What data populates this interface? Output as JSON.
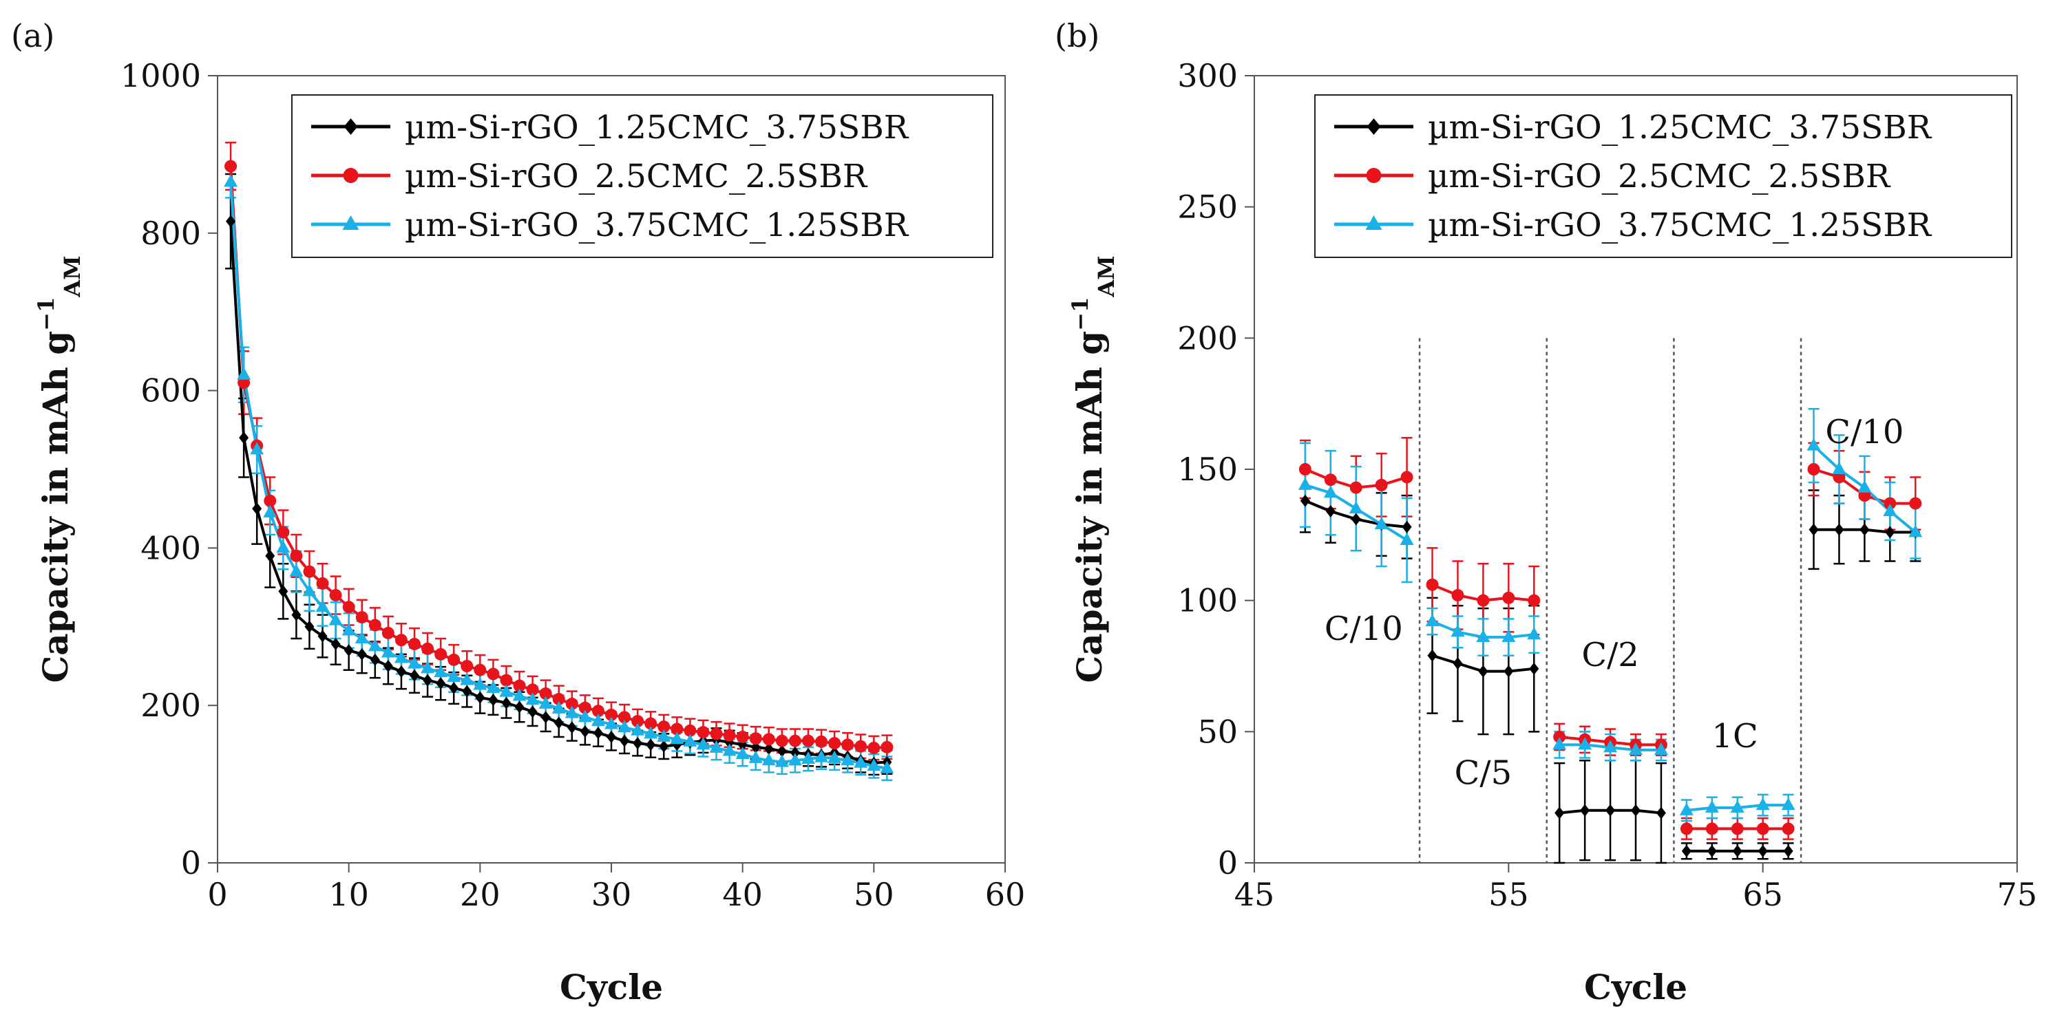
{
  "colors": {
    "series": [
      "#000000",
      "#e8131b",
      "#1ab0e8"
    ],
    "axis": "#555555",
    "divider": "#555555"
  },
  "chart_data": [
    {
      "type": "line",
      "panel_label": "(a)",
      "xlabel": "Cycle",
      "ylabel": "Capacity in mAh g",
      "ylabel_sup": "−1",
      "ylabel_sub": "AM",
      "xlim": [
        0,
        60
      ],
      "ylim": [
        0,
        1000
      ],
      "xticks": [
        0,
        10,
        20,
        30,
        40,
        50,
        60
      ],
      "yticks": [
        0,
        200,
        400,
        600,
        800,
        1000
      ],
      "legend_position": "top-right",
      "x": [
        1,
        2,
        3,
        4,
        5,
        6,
        7,
        8,
        9,
        10,
        11,
        12,
        13,
        14,
        15,
        16,
        17,
        18,
        19,
        20,
        21,
        22,
        23,
        24,
        25,
        26,
        27,
        28,
        29,
        30,
        31,
        32,
        33,
        34,
        35,
        36,
        37,
        38,
        39,
        40,
        41,
        42,
        43,
        44,
        45,
        46,
        47,
        48,
        49,
        50,
        51
      ],
      "series": [
        {
          "name": "µm-Si-rGO_1.25CMC_3.75SBR",
          "marker": "diamond",
          "values": [
            815,
            540,
            450,
            390,
            345,
            315,
            300,
            288,
            278,
            270,
            265,
            258,
            250,
            243,
            238,
            232,
            228,
            222,
            218,
            210,
            207,
            203,
            198,
            192,
            185,
            178,
            172,
            167,
            165,
            160,
            155,
            152,
            150,
            148,
            150,
            153,
            155,
            156,
            153,
            150,
            147,
            145,
            142,
            140,
            138,
            137,
            140,
            135,
            130,
            127,
            128
          ],
          "errors": [
            60,
            50,
            45,
            40,
            35,
            30,
            28,
            27,
            26,
            25,
            24,
            23,
            23,
            22,
            22,
            21,
            21,
            20,
            20,
            20,
            19,
            19,
            19,
            18,
            18,
            18,
            17,
            17,
            17,
            17,
            16,
            16,
            16,
            16,
            16,
            16,
            15,
            15,
            15,
            15,
            15,
            15,
            15,
            15,
            15,
            15,
            15,
            15,
            15,
            15,
            15
          ]
        },
        {
          "name": "µm-Si-rGO_2.5CMC_2.5SBR",
          "marker": "circle",
          "values": [
            885,
            610,
            530,
            460,
            420,
            390,
            370,
            355,
            340,
            325,
            312,
            302,
            292,
            283,
            278,
            272,
            265,
            258,
            250,
            245,
            240,
            232,
            225,
            220,
            215,
            208,
            202,
            197,
            193,
            188,
            185,
            180,
            177,
            173,
            170,
            168,
            166,
            164,
            162,
            160,
            158,
            157,
            155,
            155,
            155,
            154,
            152,
            150,
            148,
            146,
            147
          ],
          "errors": [
            30,
            40,
            35,
            30,
            28,
            27,
            26,
            25,
            24,
            23,
            22,
            22,
            21,
            21,
            20,
            20,
            20,
            19,
            19,
            19,
            18,
            18,
            18,
            17,
            17,
            17,
            16,
            16,
            16,
            16,
            16,
            15,
            15,
            15,
            15,
            15,
            15,
            15,
            15,
            15,
            15,
            15,
            15,
            15,
            15,
            15,
            15,
            15,
            15,
            15,
            15
          ]
        },
        {
          "name": "µm-Si-rGO_3.75CMC_1.25SBR",
          "marker": "triangle",
          "values": [
            865,
            620,
            525,
            445,
            400,
            370,
            345,
            325,
            308,
            295,
            285,
            275,
            267,
            260,
            253,
            247,
            242,
            236,
            232,
            226,
            222,
            217,
            212,
            207,
            202,
            196,
            190,
            185,
            180,
            176,
            172,
            168,
            164,
            160,
            157,
            154,
            150,
            146,
            142,
            138,
            133,
            130,
            128,
            130,
            132,
            134,
            133,
            130,
            127,
            123,
            120
          ],
          "errors": [
            20,
            35,
            30,
            28,
            27,
            26,
            25,
            24,
            23,
            22,
            22,
            21,
            21,
            20,
            20,
            20,
            19,
            19,
            19,
            18,
            18,
            18,
            17,
            17,
            17,
            17,
            16,
            16,
            16,
            16,
            16,
            15,
            15,
            15,
            15,
            15,
            15,
            15,
            15,
            15,
            15,
            15,
            15,
            15,
            15,
            15,
            15,
            15,
            15,
            15,
            15
          ]
        }
      ]
    },
    {
      "type": "line",
      "panel_label": "(b)",
      "xlabel": "Cycle",
      "ylabel": "Capacity in mAh g",
      "ylabel_sup": "−1",
      "ylabel_sub": "AM",
      "xlim": [
        45,
        75
      ],
      "ylim": [
        0,
        300
      ],
      "xticks": [
        45,
        55,
        65,
        75
      ],
      "yticks": [
        0,
        50,
        100,
        150,
        200,
        250,
        300
      ],
      "legend_position": "top-right",
      "dividers": [
        51.5,
        56.5,
        61.5,
        66.5
      ],
      "annotations": [
        {
          "text": "C/10",
          "x": 49.3,
          "y": 85
        },
        {
          "text": "C/5",
          "x": 54.0,
          "y": 30
        },
        {
          "text": "C/2",
          "x": 59.0,
          "y": 75
        },
        {
          "text": "1C",
          "x": 63.9,
          "y": 44
        },
        {
          "text": "C/10",
          "x": 69.0,
          "y": 160
        }
      ],
      "segments": [
        [
          47,
          48,
          49,
          50,
          51
        ],
        [
          52,
          53,
          54,
          55,
          56
        ],
        [
          57,
          58,
          59,
          60,
          61
        ],
        [
          62,
          63,
          64,
          65,
          66
        ],
        [
          67,
          68,
          69,
          70,
          71
        ]
      ],
      "series": [
        {
          "name": "µm-Si-rGO_1.25CMC_3.75SBR",
          "marker": "diamond",
          "values": [
            [
              138,
              134,
              131,
              129,
              128
            ],
            [
              79,
              76,
              73,
              73,
              74
            ],
            [
              19,
              20,
              20,
              20,
              19
            ],
            [
              4.5,
              4.5,
              4.5,
              4.5,
              4.5
            ],
            [
              127,
              127,
              127,
              126,
              126
            ]
          ],
          "errors": [
            [
              12,
              12,
              12,
              12,
              12
            ],
            [
              22,
              22,
              24,
              24,
              24
            ],
            [
              19,
              19,
              19,
              19,
              19
            ],
            [
              3,
              3,
              3,
              3,
              3
            ],
            [
              15,
              13,
              12,
              11,
              11
            ]
          ]
        },
        {
          "name": "µm-Si-rGO_2.5CMC_2.5SBR",
          "marker": "circle",
          "values": [
            [
              150,
              146,
              143,
              144,
              147
            ],
            [
              106,
              102,
              100,
              101,
              100
            ],
            [
              48,
              47,
              46,
              45,
              45
            ],
            [
              13,
              13,
              13,
              13,
              13
            ],
            [
              150,
              147,
              140,
              137,
              137
            ]
          ],
          "errors": [
            [
              11,
              11,
              12,
              12,
              15
            ],
            [
              14,
              13,
              14,
              13,
              13
            ],
            [
              5,
              5,
              5,
              4,
              4
            ],
            [
              4,
              4,
              4,
              4,
              4
            ],
            [
              10,
              10,
              9,
              10,
              10
            ]
          ]
        },
        {
          "name": "µm-Si-rGO_3.75CMC_1.25SBR",
          "marker": "triangle",
          "values": [
            [
              144,
              141,
              135,
              129,
              123
            ],
            [
              92,
              88,
              86,
              86,
              87
            ],
            [
              45,
              45,
              44,
              43,
              43
            ],
            [
              20,
              21,
              21,
              22,
              22
            ],
            [
              159,
              150,
              143,
              134,
              126
            ]
          ],
          "errors": [
            [
              16,
              16,
              16,
              16,
              16
            ],
            [
              5,
              6,
              7,
              7,
              7
            ],
            [
              5,
              5,
              5,
              4,
              4
            ],
            [
              4,
              4,
              4,
              4,
              4
            ],
            [
              14,
              13,
              12,
              11,
              10
            ]
          ]
        }
      ]
    }
  ]
}
